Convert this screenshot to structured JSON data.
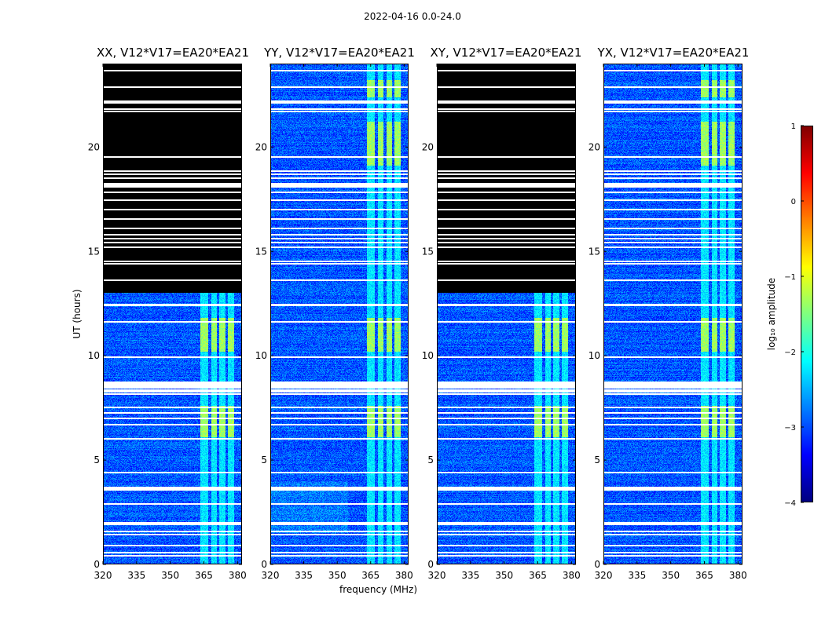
{
  "figure": {
    "suptitle": "2022-04-16 0.0-24.0",
    "xlabel": "frequency (MHz)",
    "ylabel": "UT (hours)"
  },
  "chart_data": {
    "type": "heatmap",
    "colormap": "jet",
    "xlim": [
      320,
      382
    ],
    "ylim": [
      0,
      24
    ],
    "x_ticks": [
      320,
      335,
      350,
      365,
      380
    ],
    "x_tick_labels": [
      "320",
      "335",
      "350",
      "365",
      "380"
    ],
    "y_ticks": [
      0,
      5,
      10,
      15,
      20
    ],
    "y_tick_labels": [
      "0",
      "5",
      "10",
      "15",
      "20"
    ],
    "panels": [
      {
        "title": "XX, V12*V17=EA20*EA21",
        "blank_above_hour": 13.0,
        "shared_label": false
      },
      {
        "title": "YY, V12*V17=EA20*EA21",
        "blank_above_hour": null,
        "shared_label": true
      },
      {
        "title": "XY, V12*V17=EA20*EA21",
        "blank_above_hour": 13.0,
        "shared_label": false
      },
      {
        "title": "YX, V12*V17=EA20*EA21",
        "blank_above_hour": null,
        "shared_label": false
      }
    ],
    "rfi_bands_mhz": [
      [
        363.5,
        366.8
      ],
      [
        368.2,
        370.8
      ],
      [
        372.0,
        374.6
      ],
      [
        375.8,
        378.6
      ]
    ],
    "bright_periods_hours": [
      [
        6.1,
        7.6
      ],
      [
        10.2,
        11.8
      ],
      [
        19.1,
        21.2
      ],
      [
        22.4,
        23.2
      ]
    ],
    "flagged_hours": [
      0.45,
      0.6,
      0.95,
      1.45,
      1.6,
      1.95,
      2.05,
      2.95,
      3.6,
      3.7,
      4.45,
      6.05,
      6.75,
      7.05,
      7.3,
      7.55,
      8.2,
      8.3,
      8.4,
      8.5,
      8.55,
      8.65,
      8.75,
      9.95,
      11.65,
      12.45,
      12.5,
      13.65,
      14.45,
      14.55,
      15.25,
      15.45,
      15.65,
      15.85,
      16.15,
      16.6,
      17.05,
      17.5,
      17.85,
      18.15,
      18.25,
      18.55,
      18.75,
      18.9,
      19.55,
      21.75,
      21.85,
      22.15,
      22.25,
      22.9,
      23.7
    ],
    "colorbar": {
      "label": "log₁₀ amplitude",
      "range": [
        -4,
        1
      ],
      "ticks": [
        1,
        0,
        -1,
        -2,
        -3,
        -4
      ],
      "tick_labels": [
        "1",
        "0",
        "−1",
        "−2",
        "−3",
        "−4"
      ]
    }
  }
}
